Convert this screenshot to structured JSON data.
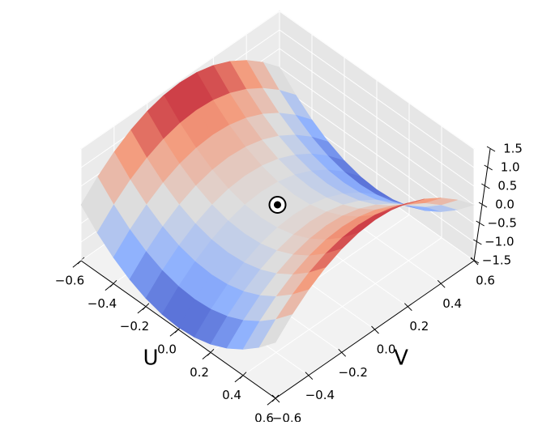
{
  "chart_data": {
    "type": "surface3d",
    "xlabel": "U",
    "ylabel": "V",
    "x": [
      -0.6,
      -0.5,
      -0.4,
      -0.3,
      -0.2,
      -0.1,
      0,
      0.1,
      0.2,
      0.3,
      0.4,
      0.5,
      0.6
    ],
    "y": [
      -0.6,
      -0.5,
      -0.4,
      -0.3,
      -0.2,
      -0.1,
      0,
      0.1,
      0.2,
      0.3,
      0.4,
      0.5,
      0.6
    ],
    "z": [
      [
        0,
        0.44,
        0.8,
        1.08,
        1.28,
        1.4,
        1.44,
        1.4,
        1.28,
        1.08,
        0.8,
        0.44,
        0
      ],
      [
        -0.44,
        0,
        0.36,
        0.64,
        0.84,
        0.96,
        1,
        0.96,
        0.84,
        0.64,
        0.36,
        0,
        -0.44
      ],
      [
        -0.8,
        -0.36,
        0,
        0.28,
        0.48,
        0.6,
        0.64,
        0.6,
        0.48,
        0.28,
        0,
        -0.36,
        -0.8
      ],
      [
        -1.08,
        -0.64,
        -0.28,
        0,
        0.2,
        0.32,
        0.36,
        0.32,
        0.2,
        0,
        -0.28,
        -0.64,
        -1.08
      ],
      [
        -1.28,
        -0.84,
        -0.48,
        -0.2,
        0,
        0.12,
        0.16,
        0.12,
        0,
        -0.2,
        -0.48,
        -0.84,
        -1.28
      ],
      [
        -1.4,
        -0.96,
        -0.6,
        -0.32,
        -0.12,
        0,
        0.04,
        0,
        -0.12,
        -0.32,
        -0.6,
        -0.96,
        -1.4
      ],
      [
        -1.44,
        -1,
        -0.64,
        -0.36,
        -0.16,
        -0.04,
        0,
        -0.04,
        -0.16,
        -0.36,
        -0.64,
        -1,
        -1.44
      ],
      [
        -1.4,
        -0.96,
        -0.6,
        -0.32,
        -0.12,
        0,
        0.04,
        0,
        -0.12,
        -0.32,
        -0.6,
        -0.96,
        -1.4
      ],
      [
        -1.28,
        -0.84,
        -0.48,
        -0.2,
        0,
        0.12,
        0.16,
        0.12,
        0,
        -0.2,
        -0.48,
        -0.84,
        -1.28
      ],
      [
        -1.08,
        -0.64,
        -0.28,
        0,
        0.2,
        0.32,
        0.36,
        0.32,
        0.2,
        0,
        -0.28,
        -0.64,
        -1.08
      ],
      [
        -0.8,
        -0.36,
        0,
        0.28,
        0.48,
        0.6,
        0.64,
        0.6,
        0.48,
        0.28,
        0,
        -0.36,
        -0.8
      ],
      [
        -0.44,
        0,
        0.36,
        0.64,
        0.84,
        0.96,
        1,
        0.96,
        0.84,
        0.64,
        0.36,
        0,
        -0.44
      ],
      [
        0,
        0.44,
        0.8,
        1.08,
        1.28,
        1.4,
        1.44,
        1.4,
        1.28,
        1.08,
        0.8,
        0.44,
        0
      ]
    ],
    "colormap": "coolwarm",
    "marker": {
      "x": 0,
      "y": 0,
      "z": 0
    },
    "xlim": [
      -0.6,
      0.6
    ],
    "ylim": [
      -0.6,
      0.6
    ],
    "zlim": [
      -1.5,
      1.5
    ],
    "xticks": [
      {
        "value": -0.6,
        "label": "−0.6"
      },
      {
        "value": -0.4,
        "label": "−0.4"
      },
      {
        "value": -0.2,
        "label": "−0.2"
      },
      {
        "value": 0,
        "label": "0.0"
      },
      {
        "value": 0.2,
        "label": "0.2"
      },
      {
        "value": 0.4,
        "label": "0.4"
      },
      {
        "value": 0.6,
        "label": "0.6"
      }
    ],
    "yticks": [
      {
        "value": -0.6,
        "label": "−0.6"
      },
      {
        "value": -0.4,
        "label": "−0.4"
      },
      {
        "value": -0.2,
        "label": "−0.2"
      },
      {
        "value": 0,
        "label": "0.0"
      },
      {
        "value": 0.2,
        "label": "0.2"
      },
      {
        "value": 0.4,
        "label": "0.4"
      },
      {
        "value": 0.6,
        "label": "0.6"
      }
    ],
    "zticks": [
      {
        "value": -1.5,
        "label": "−1.5"
      },
      {
        "value": -1,
        "label": "−1.0"
      },
      {
        "value": -0.5,
        "label": "−0.5"
      },
      {
        "value": 0,
        "label": "0.0"
      },
      {
        "value": 0.5,
        "label": "0.5"
      },
      {
        "value": 1,
        "label": "1.0"
      },
      {
        "value": 1.5,
        "label": "1.5"
      }
    ],
    "grid": true
  }
}
